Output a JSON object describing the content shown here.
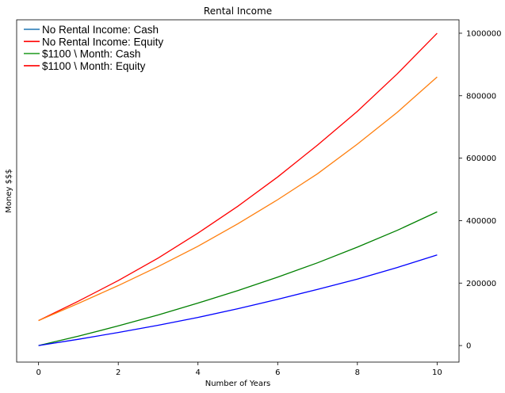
{
  "chart_data": {
    "type": "line",
    "title": "Rental Income",
    "xlabel": "Number of Years",
    "ylabel": "Money $$$",
    "xlim": [
      -0.55,
      10.55
    ],
    "ylim": [
      -53000,
      1043000
    ],
    "x_ticks": [
      0,
      2,
      4,
      6,
      8,
      10
    ],
    "y_ticks": [
      0,
      200000,
      400000,
      600000,
      800000,
      1000000
    ],
    "y_axis_side": "right",
    "grid": false,
    "legend": {
      "placement": "top-left",
      "entries": [
        {
          "label": "No Rental Income: Cash",
          "color": "#1f77b4"
        },
        {
          "label": "No Rental Income: Equity",
          "color": "#ff0000"
        },
        {
          "label": "$1100 \\ Month: Cash",
          "color": "#2ca02c"
        },
        {
          "label": "$1100 \\ Month: Equity",
          "color": "#ff0000"
        }
      ]
    },
    "x": [
      0,
      1,
      2,
      3,
      4,
      5,
      6,
      7,
      8,
      9,
      10
    ],
    "series": [
      {
        "color": "#ff0000",
        "values": [
          80000,
          142000,
          208000,
          280000,
          360000,
          446000,
          540000,
          642000,
          750000,
          870000,
          1000000
        ]
      },
      {
        "color": "#ff7f0e",
        "values": [
          80000,
          135000,
          192000,
          253000,
          318000,
          390000,
          467000,
          550000,
          645000,
          747000,
          860000
        ]
      },
      {
        "color": "#008000",
        "values": [
          0,
          30000,
          63000,
          98000,
          136000,
          176000,
          219000,
          265000,
          315000,
          369000,
          428000
        ]
      },
      {
        "color": "#0000ff",
        "values": [
          0,
          20000,
          42000,
          65000,
          90000,
          118000,
          148000,
          180000,
          213000,
          250000,
          290000
        ]
      }
    ]
  }
}
